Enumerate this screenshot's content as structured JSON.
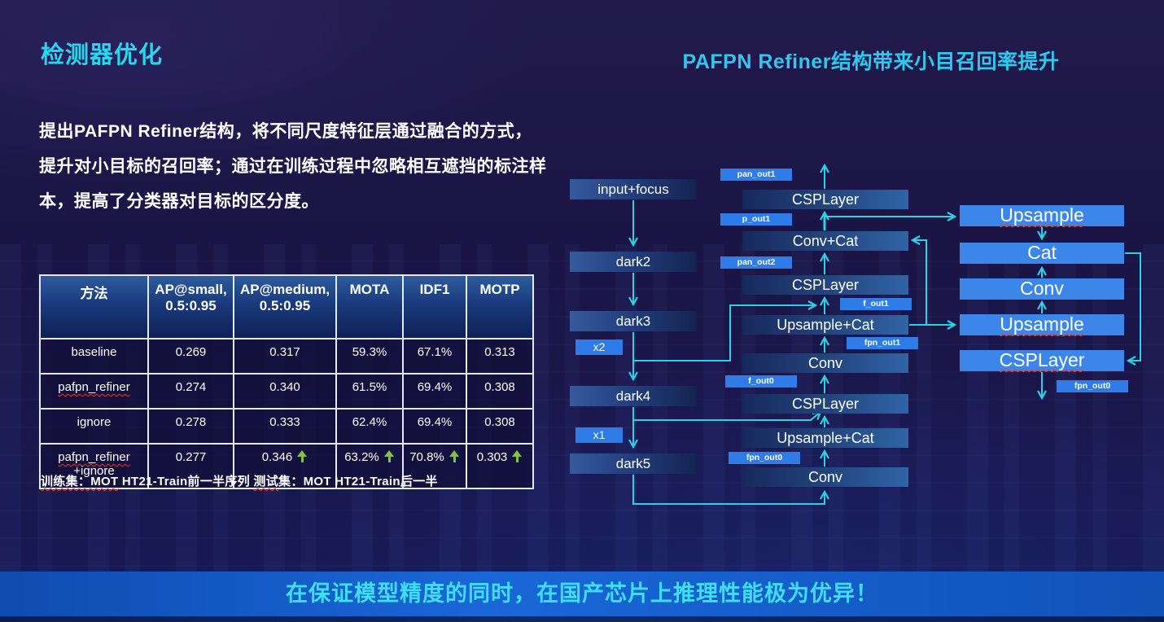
{
  "page": {
    "title": "检测器优化",
    "right_title": "PAFPN Refiner结构带来小目召回率提升",
    "paragraph_lines": [
      "提出PAFPN  Refiner结构，将不同尺度特征层通过融合的方式，",
      "提升对小目标的召回率；通过在训练过程中忽略相互遮挡的标注样",
      "本，提高了分类器对目标的区分度。"
    ],
    "banner": "在保证模型精度的同时，在国产芯片上推理性能极为优异！"
  },
  "table": {
    "headers": [
      "方法",
      "AP@small,0.5:0.95",
      "AP@medium,0.5:0.95",
      "MOTA",
      "IDF1",
      "MOTP"
    ],
    "rows": [
      {
        "method_lines": [
          "baseline"
        ],
        "misspelled": false,
        "cells": [
          {
            "v": "0.269"
          },
          {
            "v": "0.317"
          },
          {
            "v": "59.3%"
          },
          {
            "v": "67.1%"
          },
          {
            "v": "0.313"
          }
        ]
      },
      {
        "method_lines": [
          "pafpn_refiner"
        ],
        "misspelled": true,
        "cells": [
          {
            "v": "0.274"
          },
          {
            "v": "0.340"
          },
          {
            "v": "61.5%"
          },
          {
            "v": "69.4%"
          },
          {
            "v": "0.308"
          }
        ]
      },
      {
        "method_lines": [
          "ignore"
        ],
        "misspelled": false,
        "cells": [
          {
            "v": "0.278"
          },
          {
            "v": "0.333"
          },
          {
            "v": "62.4%"
          },
          {
            "v": "69.4%"
          },
          {
            "v": "0.308"
          }
        ]
      },
      {
        "method_lines": [
          "pafpn_refiner",
          "+ignore"
        ],
        "misspelled": true,
        "cells": [
          {
            "v": "0.277"
          },
          {
            "v": "0.346",
            "up": true
          },
          {
            "v": "63.2%",
            "up": true
          },
          {
            "v": "70.8%",
            "up": true
          },
          {
            "v": "0.303",
            "up": true
          }
        ]
      }
    ]
  },
  "note_segments": [
    {
      "t": "训练集：MOT",
      "sp": true
    },
    {
      "t": " HT21-Train前一半序列 ",
      "sp": false
    },
    {
      "t": "测试",
      "sp": true
    },
    {
      "t": "集：MOT HT21-Train后一半",
      "sp": false
    }
  ],
  "diagram": {
    "backbone": [
      "input+focus",
      "dark2",
      "dark3",
      "dark4",
      "dark5"
    ],
    "mid": [
      "CSPLayer",
      "Conv+Cat",
      "CSPLayer",
      "Upsample+Cat",
      "Conv",
      "CSPLayer",
      "Upsample+Cat",
      "Conv"
    ],
    "refiner": [
      {
        "label": "Upsample",
        "misspelled": true
      },
      {
        "label": "Cat",
        "misspelled": false
      },
      {
        "label": "Conv",
        "misspelled": false
      },
      {
        "label": "Upsample",
        "misspelled": true
      },
      {
        "label": "CSPLayer",
        "misspelled": true
      }
    ],
    "ports": [
      "pan_out1",
      "p_out1",
      "pan_out2",
      "f_out1",
      "fpn_out1",
      "f_out0",
      "fpn_out0",
      "fpn_out0"
    ],
    "x_labels": [
      "x2",
      "x1"
    ]
  },
  "colors": {
    "title_cyan": "#27d7ee",
    "arrow_cyan": "#2ad2e8",
    "up_arrow_green": "#84c341",
    "label_blue": "#2d7ce8",
    "refiner_blue": "#3c86e9",
    "banner_blue": "#1a67d8"
  }
}
